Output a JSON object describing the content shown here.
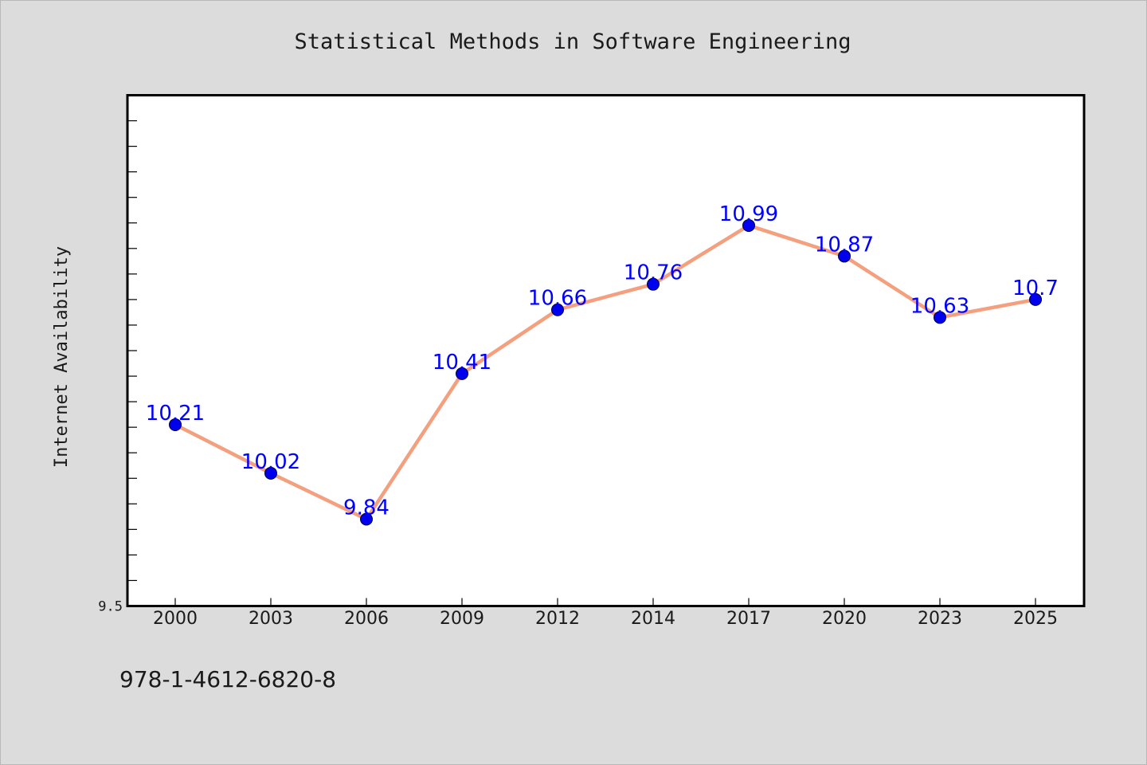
{
  "footer_text": "978-1-4612-6820-8",
  "colors": {
    "background": "#dcdcdc",
    "plot_background": "#ffffff",
    "line": "#f4a07f",
    "marker": "#0000ee",
    "data_label": "#0000ff",
    "text": "#1a1a1a"
  },
  "chart_data": {
    "type": "line",
    "title": "Statistical Methods in Software Engineering",
    "xlabel": "",
    "ylabel": "Internet Availability",
    "categories": [
      "2000",
      "2003",
      "2006",
      "2009",
      "2012",
      "2014",
      "2017",
      "2020",
      "2023",
      "2025"
    ],
    "series": [
      {
        "values": [
          10.21,
          10.02,
          9.84,
          10.41,
          10.66,
          10.76,
          10.99,
          10.87,
          10.63,
          10.7
        ],
        "labels": [
          "10.21",
          "10.02",
          "9.84",
          "10.41",
          "10.66",
          "10.76",
          "10.99",
          "10.87",
          "10.63",
          "10.7"
        ]
      }
    ],
    "ylim": [
      9.5,
      11.5
    ],
    "y_tick_labels": [
      "9.5"
    ],
    "y_minor_tick_step": 0.1,
    "grid": false,
    "legend": "none"
  }
}
